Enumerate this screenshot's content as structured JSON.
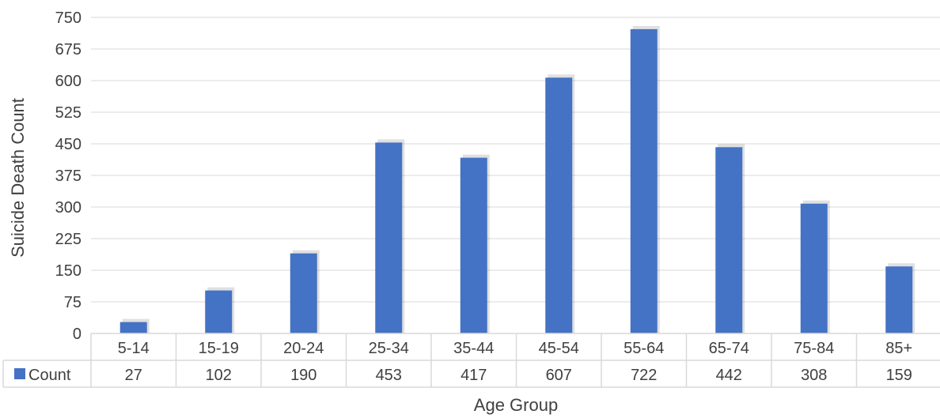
{
  "chart_data": {
    "type": "bar",
    "categories": [
      "5-14",
      "15-19",
      "20-24",
      "25-34",
      "35-44",
      "45-54",
      "55-64",
      "65-74",
      "75-84",
      "85+"
    ],
    "series": [
      {
        "name": "Count",
        "values": [
          27,
          102,
          190,
          453,
          417,
          607,
          722,
          442,
          308,
          159
        ]
      }
    ],
    "xlabel": "Age Group",
    "ylabel": "Suicide Death Count",
    "ylim": [
      0,
      750
    ],
    "yticks": [
      0,
      75,
      150,
      225,
      300,
      375,
      450,
      525,
      600,
      675,
      750
    ],
    "grid": true,
    "data_table": true,
    "colors": {
      "bar": "#4472C4",
      "grid": "#D9D9D9",
      "text": "#404040"
    }
  }
}
